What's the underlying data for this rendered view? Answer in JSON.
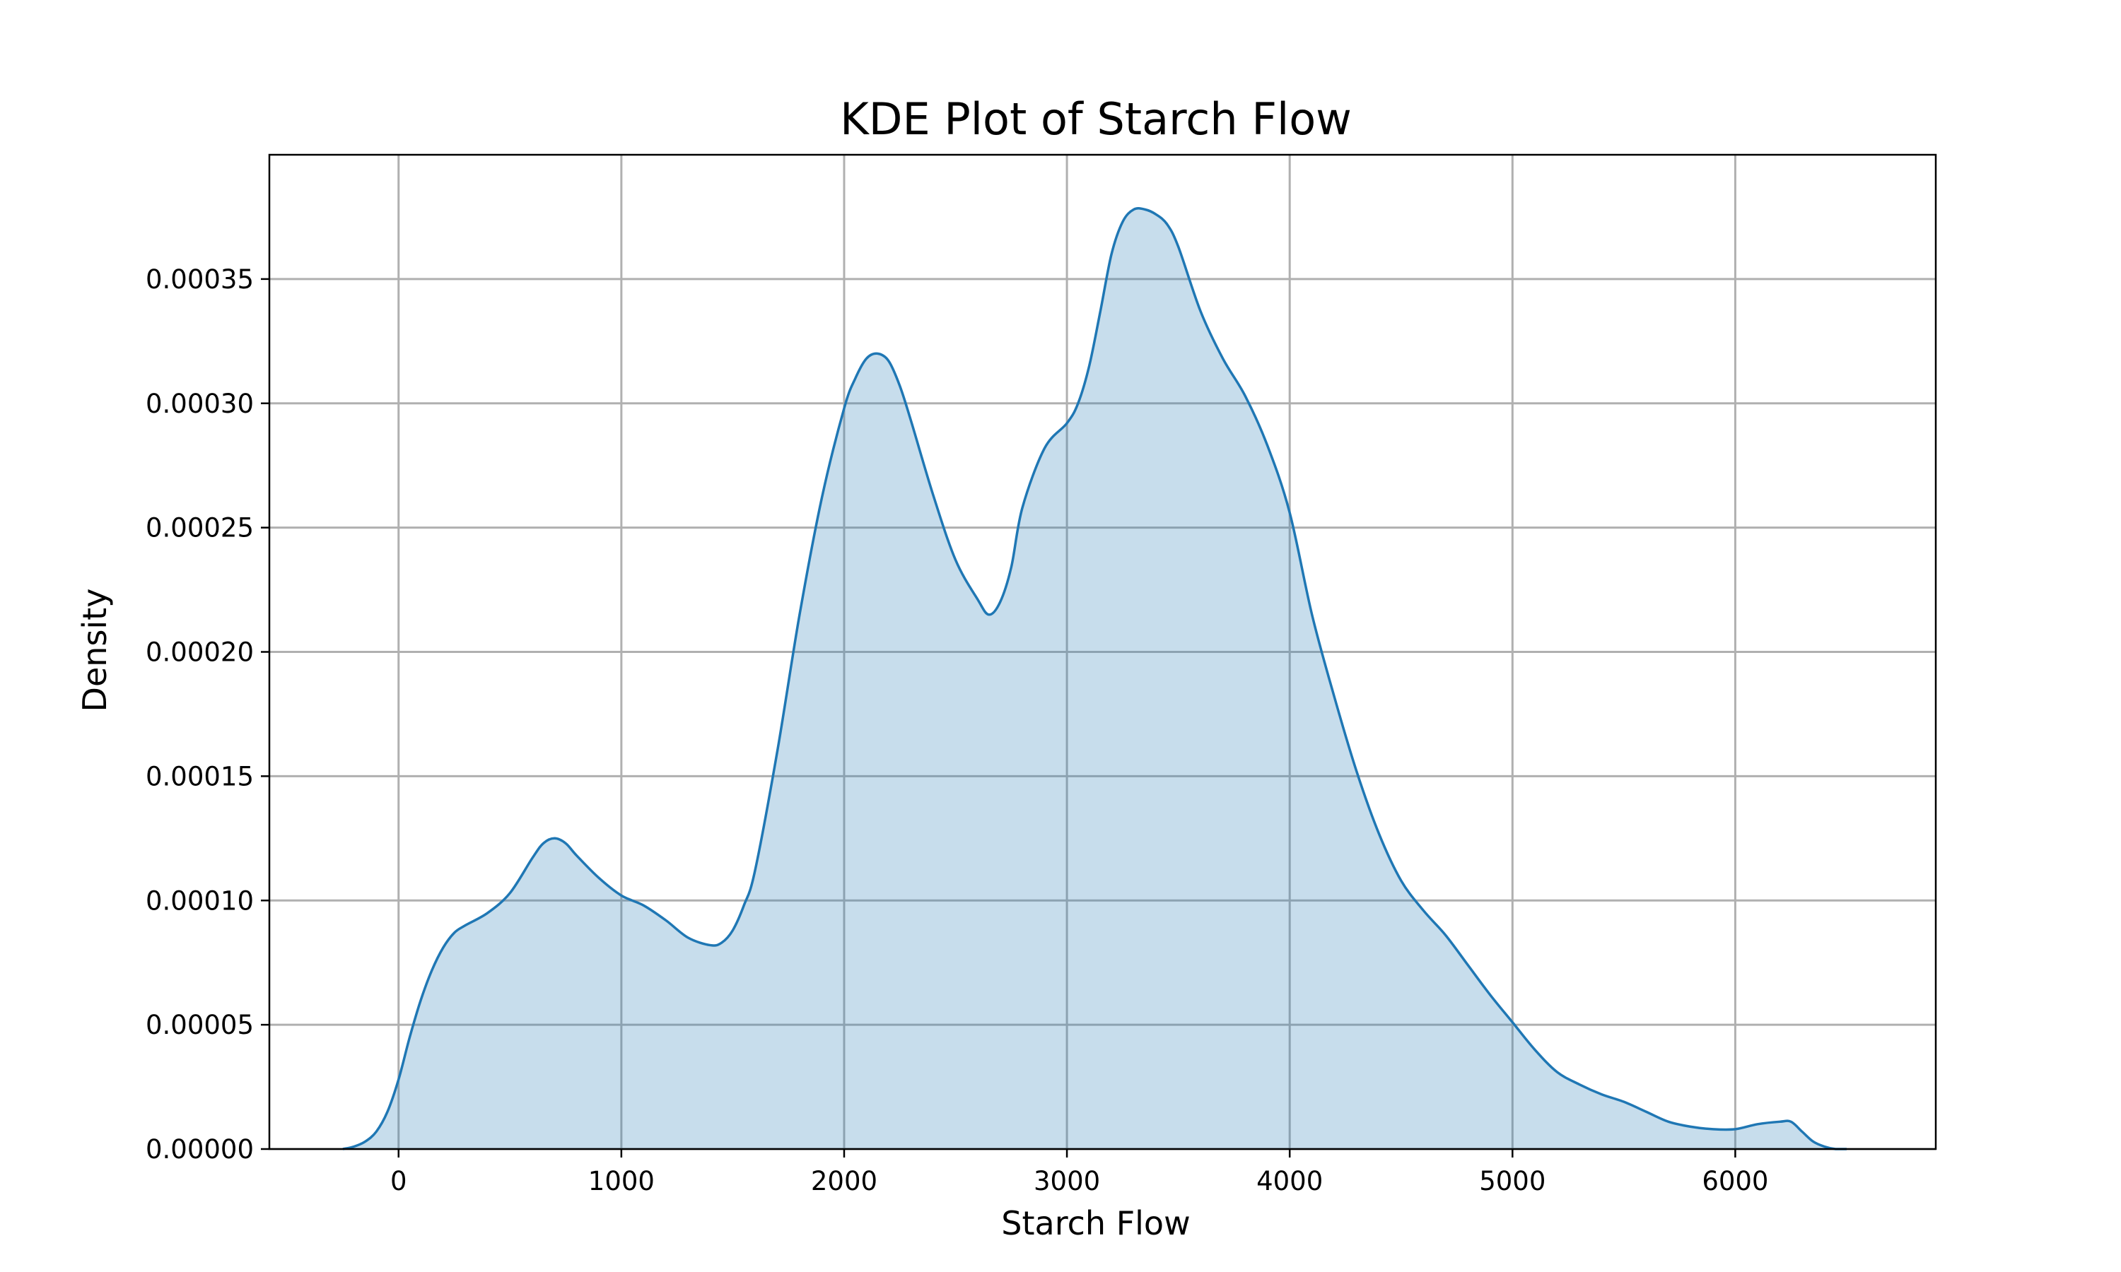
{
  "chart_data": {
    "type": "area",
    "title": "KDE Plot of Starch Flow",
    "xlabel": "Starch Flow",
    "ylabel": "Density",
    "xlim": [
      -580,
      6900
    ],
    "ylim": [
      0,
      0.0004
    ],
    "xticks": [
      0,
      1000,
      2000,
      3000,
      4000,
      5000,
      6000
    ],
    "xtick_labels": [
      "0",
      "1000",
      "2000",
      "3000",
      "4000",
      "5000",
      "6000"
    ],
    "yticks": [
      0,
      5e-05,
      0.0001,
      0.00015,
      0.0002,
      0.00025,
      0.0003,
      0.00035
    ],
    "ytick_labels": [
      "0.00000",
      "0.00005",
      "0.00010",
      "0.00015",
      "0.00020",
      "0.00025",
      "0.00030",
      "0.00035"
    ],
    "grid": true,
    "colors": {
      "line": "#1f77b4",
      "fill": "#1f77b4",
      "grid": "#b0b0b0"
    },
    "series": [
      {
        "x": [
          -250,
          -200,
          -150,
          -100,
          -50,
          0,
          50,
          100,
          150,
          200,
          250,
          300,
          400,
          500,
          600,
          650,
          700,
          750,
          800,
          900,
          1000,
          1100,
          1200,
          1300,
          1400,
          1450,
          1500,
          1550,
          1600,
          1700,
          1800,
          1900,
          2000,
          2050,
          2100,
          2150,
          2200,
          2250,
          2300,
          2400,
          2500,
          2600,
          2650,
          2700,
          2750,
          2800,
          2900,
          3000,
          3050,
          3100,
          3150,
          3200,
          3250,
          3300,
          3350,
          3400,
          3450,
          3500,
          3600,
          3700,
          3800,
          3900,
          4000,
          4100,
          4200,
          4300,
          4400,
          4500,
          4600,
          4700,
          4800,
          4900,
          5000,
          5100,
          5200,
          5300,
          5400,
          5500,
          5600,
          5700,
          5800,
          5900,
          6000,
          6100,
          6200,
          6250,
          6300,
          6350,
          6400,
          6450,
          6500
        ],
        "y": [
          0.0,
          1e-06,
          3e-06,
          7e-06,
          1.5e-05,
          2.8e-05,
          4.5e-05,
          6e-05,
          7.2e-05,
          8.1e-05,
          8.7e-05,
          9e-05,
          9.5e-05,
          0.000103,
          0.000117,
          0.000123,
          0.000125,
          0.000123,
          0.000118,
          0.000109,
          0.000102,
          9.8e-05,
          9.2e-05,
          8.5e-05,
          8.2e-05,
          8.3e-05,
          8.8e-05,
          9.8e-05,
          0.000112,
          0.00016,
          0.000215,
          0.000262,
          0.000298,
          0.00031,
          0.000318,
          0.00032,
          0.000317,
          0.000307,
          0.000293,
          0.000263,
          0.000237,
          0.000221,
          0.000215,
          0.00022,
          0.000234,
          0.000258,
          0.000282,
          0.000292,
          0.0003,
          0.000315,
          0.000337,
          0.00036,
          0.000373,
          0.000378,
          0.000378,
          0.000376,
          0.000372,
          0.000363,
          0.000337,
          0.000318,
          0.000303,
          0.000283,
          0.000256,
          0.000215,
          0.000182,
          0.000152,
          0.000127,
          0.000108,
          9.6e-05,
          8.6e-05,
          7.4e-05,
          6.2e-05,
          5.1e-05,
          4e-05,
          3.1e-05,
          2.6e-05,
          2.2e-05,
          1.9e-05,
          1.5e-05,
          1.1e-05,
          9e-06,
          8e-06,
          8e-06,
          1e-05,
          1.1e-05,
          1.1e-05,
          7e-06,
          3e-06,
          1e-06,
          0.0,
          0.0
        ]
      }
    ]
  }
}
